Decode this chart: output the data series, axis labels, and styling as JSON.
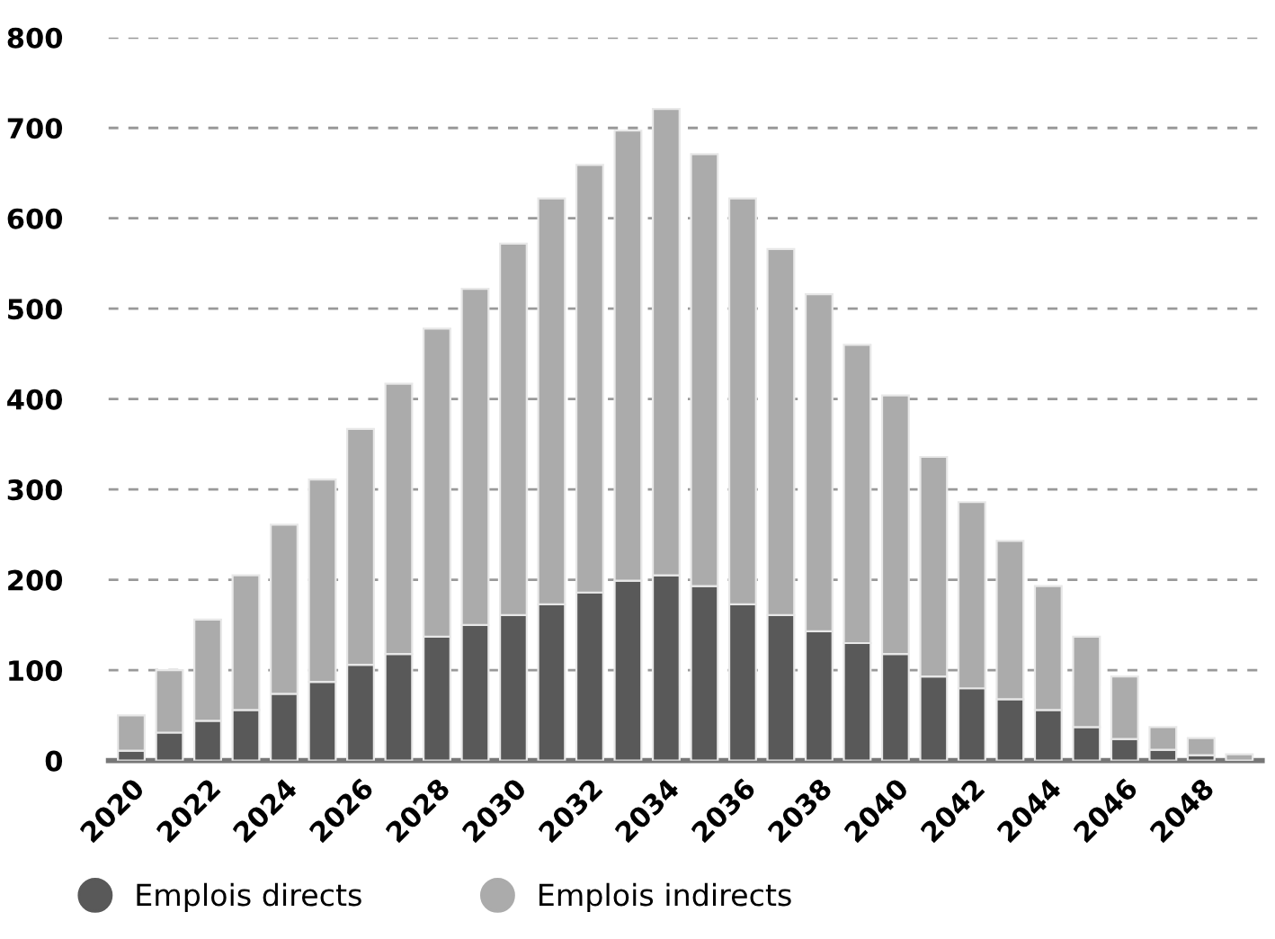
{
  "chart_data": {
    "type": "bar",
    "stacked": true,
    "categories": [
      "2020",
      null,
      "2022",
      null,
      "2024",
      null,
      "2026",
      null,
      "2028",
      null,
      "2030",
      null,
      "2032",
      null,
      "2034",
      null,
      "2036",
      null,
      "2038",
      null,
      "2040",
      null,
      "2042",
      null,
      "2044",
      null,
      "2046",
      null,
      "2048",
      null
    ],
    "series": [
      {
        "name": "Emplois directs",
        "color": "#595959",
        "values": [
          11,
          31,
          44,
          56,
          74,
          87,
          106,
          118,
          137,
          150,
          161,
          173,
          186,
          199,
          205,
          193,
          173,
          161,
          143,
          130,
          118,
          93,
          80,
          68,
          56,
          37,
          24,
          12,
          6,
          0
        ]
      },
      {
        "name": "Emplois indirects",
        "color": "#ababab",
        "values": [
          39,
          69,
          112,
          149,
          187,
          224,
          261,
          299,
          341,
          372,
          411,
          449,
          473,
          498,
          516,
          478,
          449,
          405,
          373,
          330,
          286,
          243,
          206,
          175,
          137,
          100,
          69,
          25,
          19,
          7
        ]
      }
    ],
    "ylim": [
      0,
      800
    ],
    "yticks": [
      0,
      100,
      200,
      300,
      400,
      500,
      600,
      700,
      800
    ],
    "grid": "y",
    "legend": "bottom"
  }
}
